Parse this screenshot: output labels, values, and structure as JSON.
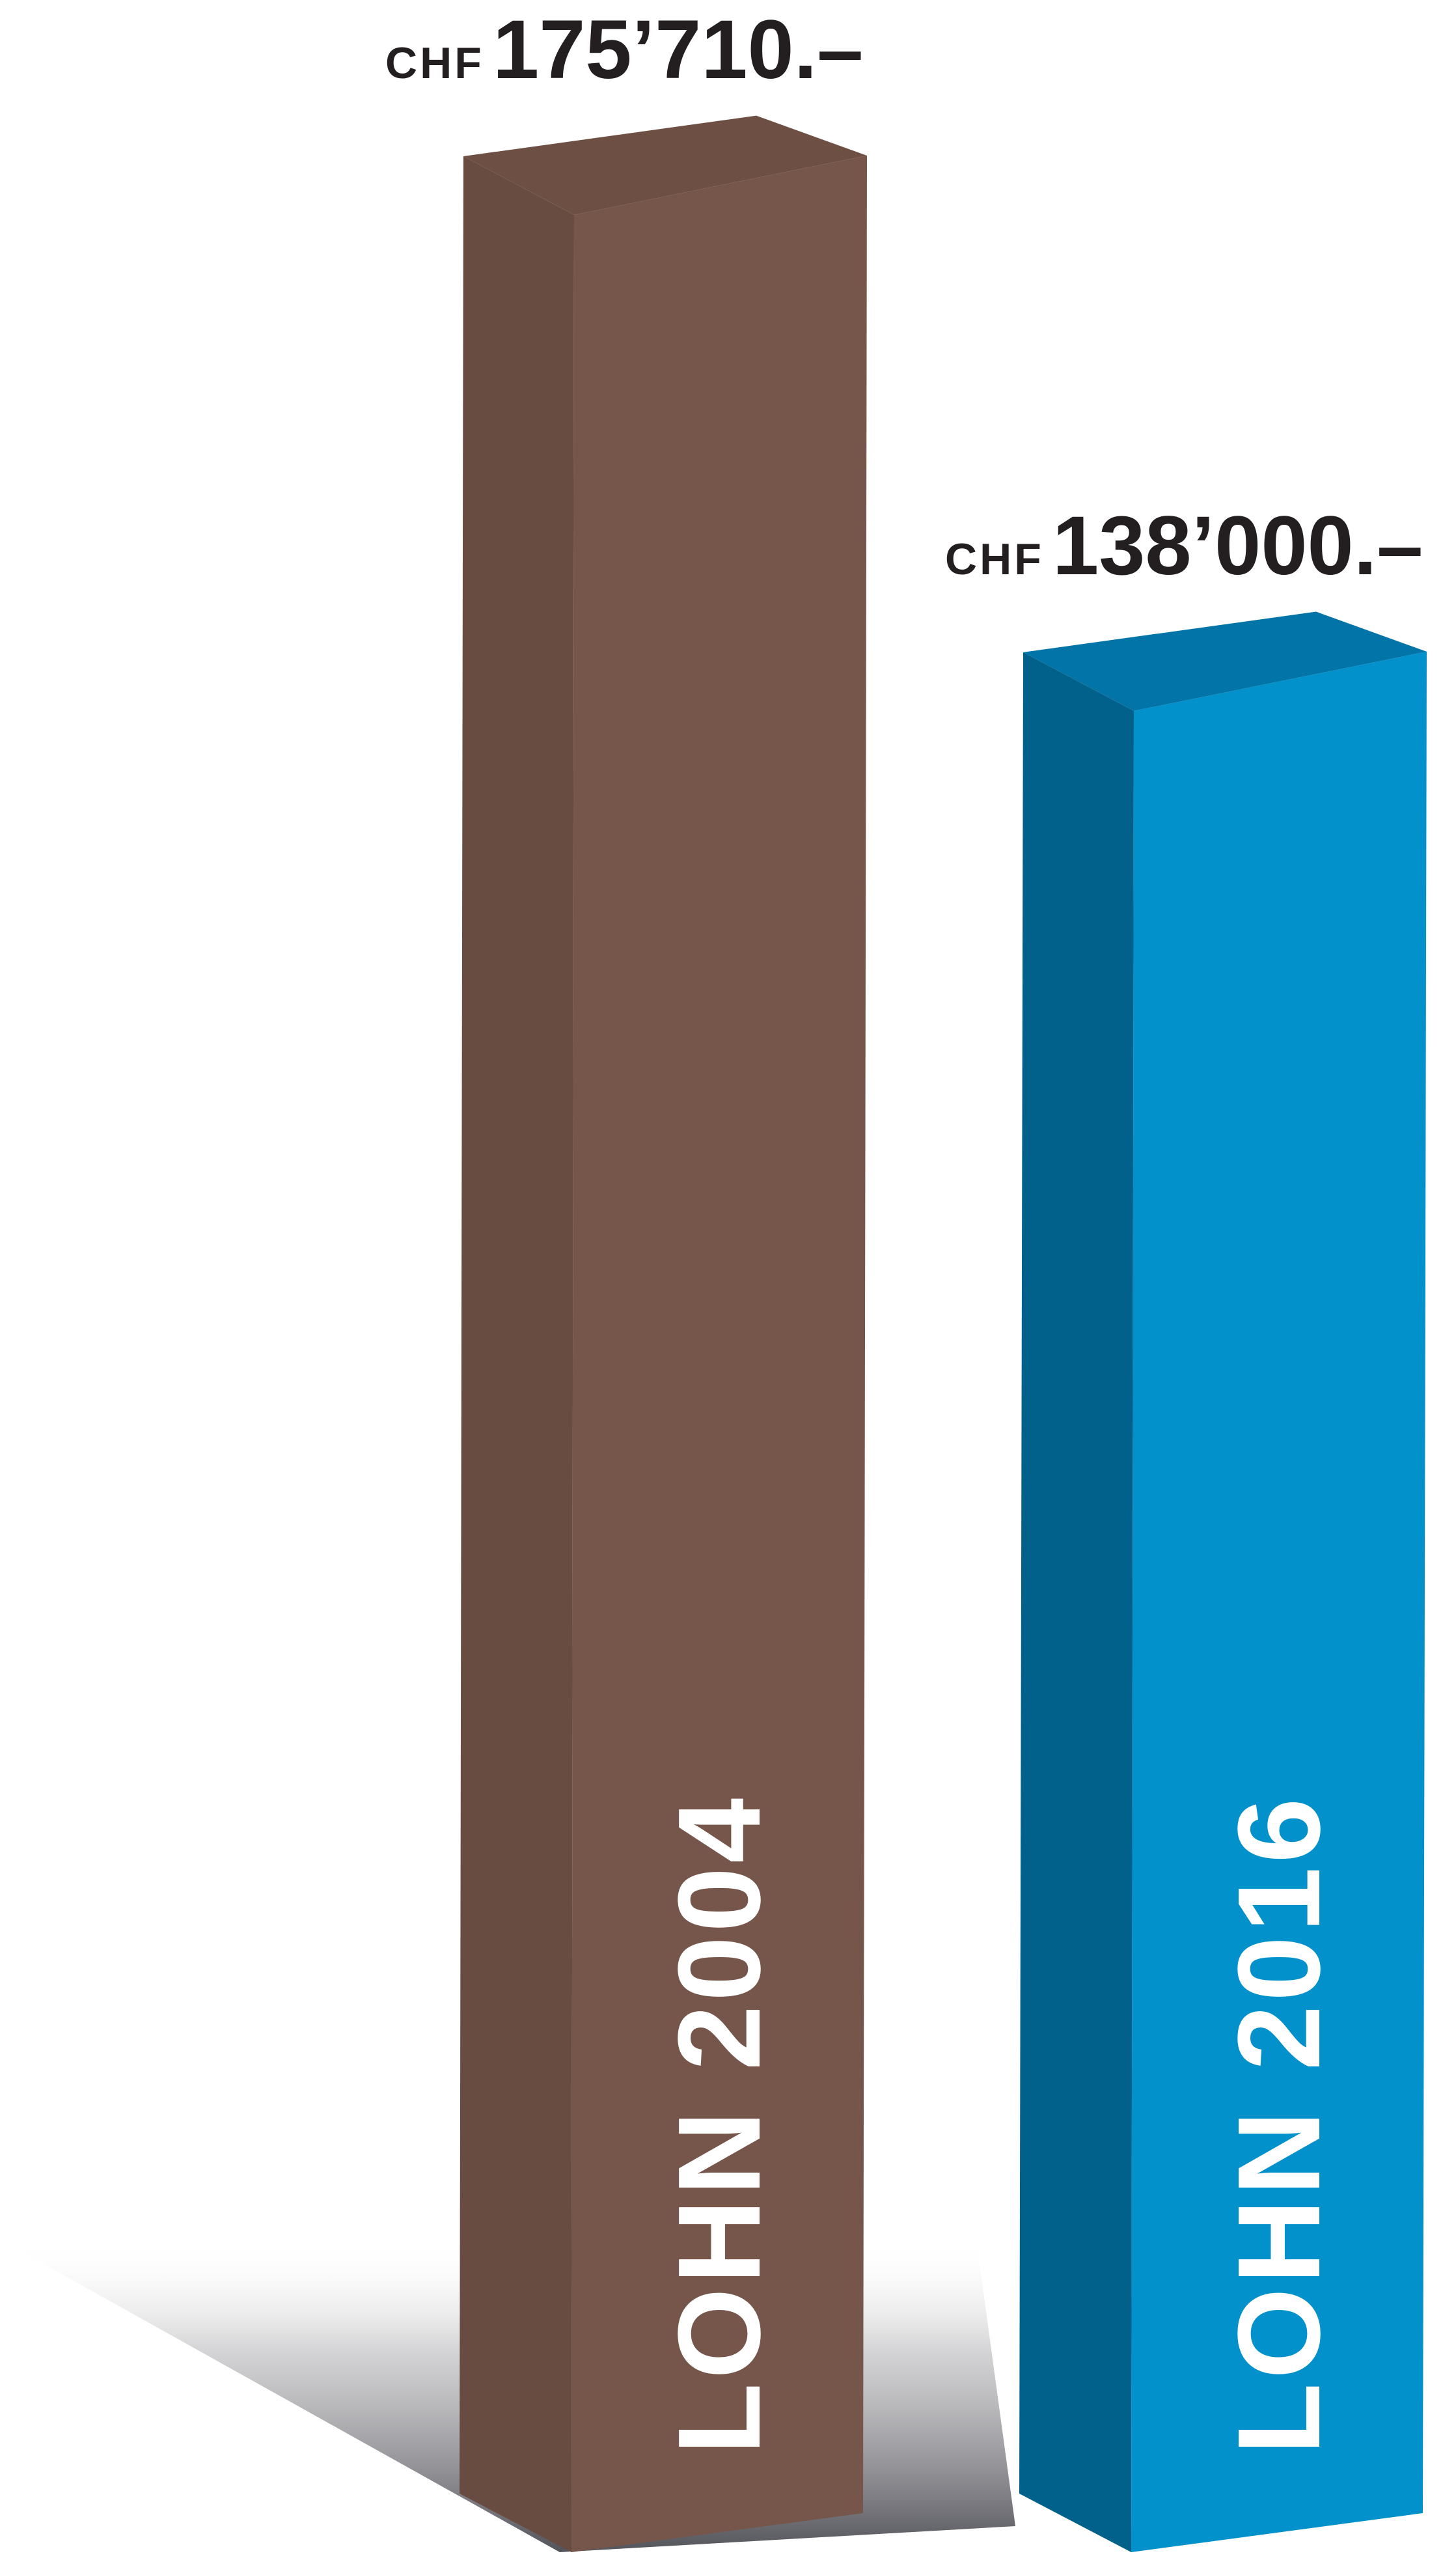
{
  "chart_data": {
    "type": "bar",
    "style": "3d-columns",
    "grid": false,
    "legend": "none",
    "ylim": [
      0,
      175710
    ],
    "currency": "CHF",
    "series": [
      {
        "category": "LOHN 2004",
        "value": 175710,
        "value_label": "175’710.–",
        "colors": {
          "front": "#76564a",
          "side": "#684c41",
          "top": "#6d5043"
        }
      },
      {
        "category": "LOHN 2016",
        "value": 138000,
        "value_label": "138’000.–",
        "colors": {
          "front": "#0391cc",
          "side": "#02618b",
          "top": "#0274a7"
        }
      }
    ]
  }
}
